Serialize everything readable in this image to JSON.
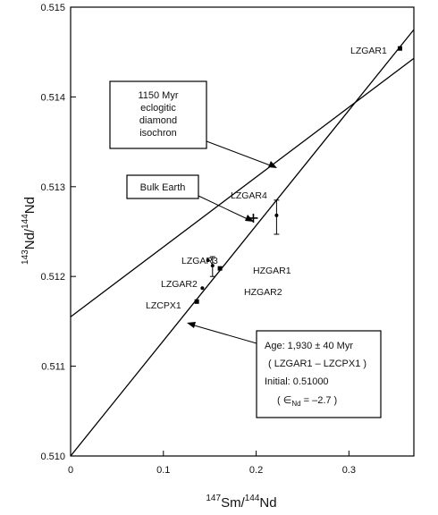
{
  "chart_data": {
    "type": "scatter",
    "xlabel": {
      "sup": "147",
      "main": "Sm",
      "slash": "/",
      "sup2": "144",
      "main2": "Nd"
    },
    "ylabel": {
      "sup": "143",
      "main": "Nd",
      "slash": "/",
      "sup2": "144",
      "main2": "Nd"
    },
    "xlim": [
      0,
      0.37
    ],
    "ylim": [
      0.51,
      0.515
    ],
    "x_ticks": [
      "0",
      "0.1",
      "0.2",
      "0.3"
    ],
    "x_tick_values": [
      0,
      0.1,
      0.2,
      0.3
    ],
    "y_ticks": [
      "0.510",
      "0.511",
      "0.512",
      "0.513",
      "0.514",
      "0.515"
    ],
    "y_tick_values": [
      0.51,
      0.511,
      0.512,
      0.513,
      0.514,
      0.515
    ],
    "points": [
      {
        "label": "LZGAR1",
        "x": 0.355,
        "y": 0.51454,
        "marker": "square"
      },
      {
        "label": "LZGAR4",
        "x": 0.222,
        "y": 0.51268,
        "marker": "dot",
        "err_low": 0.51247,
        "err_high": 0.51285
      },
      {
        "label": "Bulk Earth",
        "x": 0.197,
        "y": 0.51265,
        "marker": "cross"
      },
      {
        "label": "LZGAR3",
        "x": 0.148,
        "y": 0.51218,
        "marker": "dot"
      },
      {
        "label": "HZGAR1",
        "x": 0.161,
        "y": 0.51209,
        "marker": "square"
      },
      {
        "label": "HZGAR2",
        "x": 0.153,
        "y": 0.51212,
        "marker": "dot",
        "err_low": 0.512,
        "err_high": 0.51222
      },
      {
        "label": "LZGAR2",
        "x": 0.142,
        "y": 0.51187,
        "marker": "dot"
      },
      {
        "label": "LZCPX1",
        "x": 0.136,
        "y": 0.51172,
        "marker": "square"
      }
    ],
    "lines": [
      {
        "name": "1930 Myr isochron",
        "x": [
          0,
          0.37
        ],
        "y": [
          0.51,
          0.51475
        ]
      },
      {
        "name": "1150 Myr eclogitic diamond isochron",
        "x": [
          0,
          0.37
        ],
        "y": [
          0.51155,
          0.51443
        ]
      }
    ],
    "annotations": {
      "diamond_box": [
        "1150 Myr",
        "eclogitic",
        "diamond",
        "isochron"
      ],
      "bulk_earth_box": "Bulk Earth",
      "age_box": [
        "Age: 1,930 ± 40 Myr",
        "( LZGAR1 – LZCPX1 )",
        "Initial: 0.51000",
        "( ∈",
        "Nd",
        " = –2.7 )"
      ]
    }
  }
}
